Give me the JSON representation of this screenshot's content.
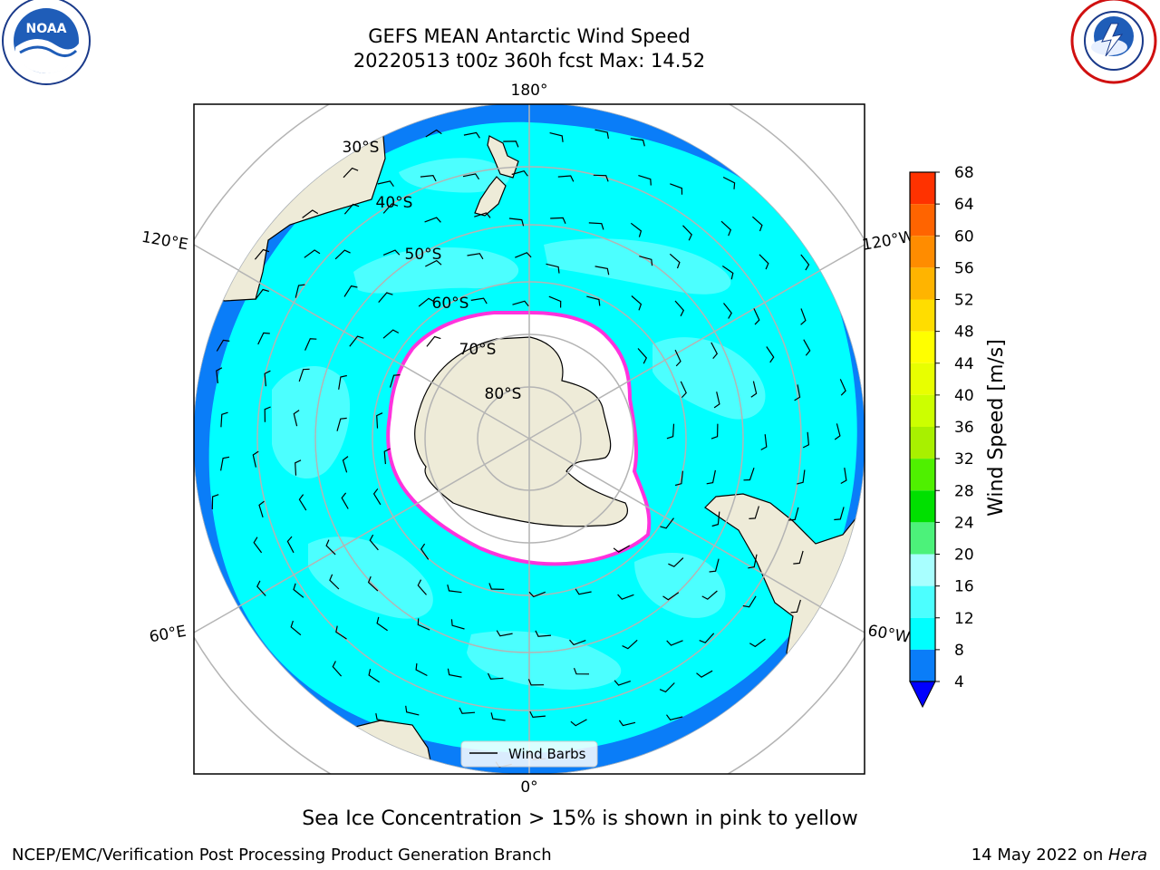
{
  "header": {
    "title": "GEFS MEAN Antarctic Wind Speed",
    "subtitle": "20220513 t00z 360h fcst   Max: 14.52"
  },
  "logos": {
    "left": "NOAA",
    "left_ring": "NATIONAL OCEANIC AND ATMOSPHERIC ADMINISTRATION · U.S. DEPARTMENT OF COMMERCE",
    "right_ring": "NATIONAL WEATHER SERVICE"
  },
  "map": {
    "projection": "south-polar-stereographic",
    "longitude_labels": [
      "180°",
      "120°E",
      "120°W",
      "60°E",
      "60°W",
      "0°"
    ],
    "latitude_labels": [
      "30°S",
      "40°S",
      "50°S",
      "60°S",
      "70°S",
      "80°S"
    ],
    "colors": {
      "land": "#eeebd8",
      "ice": "#ffffff",
      "ice_edge": "#ff33dd",
      "band_4_8": "#0a7df8",
      "band_8_12": "#00ffff",
      "band_12_16": "#4cffff"
    }
  },
  "legend": {
    "label": "Wind Barbs"
  },
  "colorbar": {
    "label": "Wind Speed [m/s]",
    "ticks": [
      "4",
      "8",
      "12",
      "16",
      "20",
      "24",
      "28",
      "32",
      "36",
      "40",
      "44",
      "48",
      "52",
      "56",
      "60",
      "64",
      "68"
    ],
    "colors": [
      "#0a7df8",
      "#00ffff",
      "#4cffff",
      "#a8ffff",
      "#4cf27a",
      "#00e000",
      "#4ff000",
      "#a8f000",
      "#ccff00",
      "#e8ff00",
      "#ffff00",
      "#ffdd00",
      "#ffb400",
      "#ff8c00",
      "#ff6400",
      "#ff3200",
      "#ff0000"
    ],
    "extend_color": "#0000ff"
  },
  "caption": "Sea Ice Concentration > 15% is shown in pink to yellow",
  "footer": {
    "left": "NCEP/EMC/Verification Post Processing Product Generation Branch",
    "right_date": "14 May 2022 on ",
    "right_host": "Hera"
  }
}
